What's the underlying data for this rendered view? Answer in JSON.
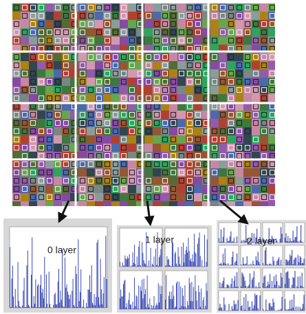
{
  "panels": [
    {
      "label": "0 layer"
    },
    {
      "label": "1 layer"
    },
    {
      "label": "2 layer"
    }
  ]
}
